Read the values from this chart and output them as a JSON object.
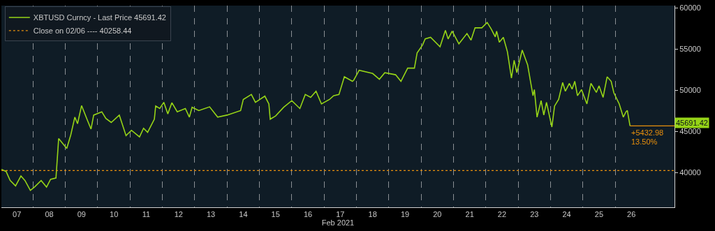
{
  "chart_data": {
    "type": "line",
    "xlabel": "Feb 2021",
    "x": [
      "2021-02-07T00:30",
      "2021-02-07T04:00",
      "2021-02-07T07:00",
      "2021-02-07T11:00",
      "2021-02-07T15:00",
      "2021-02-07T18:00",
      "2021-02-07T22:00",
      "2021-02-08T01:00",
      "2021-02-08T06:00",
      "2021-02-08T10:00",
      "2021-02-08T13:00",
      "2021-02-08T17:00",
      "2021-02-08T19:00",
      "2021-02-08T21:00",
      "2021-02-09T01:00",
      "2021-02-09T04:00",
      "2021-02-09T07:00",
      "2021-02-09T09:00",
      "2021-02-09T12:00",
      "2021-02-09T16:00",
      "2021-02-09T19:00",
      "2021-02-09T21:00",
      "2021-02-10T03:00",
      "2021-02-10T06:00",
      "2021-02-10T10:00",
      "2021-02-10T16:00",
      "2021-02-10T21:00",
      "2021-02-11T01:00",
      "2021-02-11T07:00",
      "2021-02-11T10:00",
      "2021-02-11T13:00",
      "2021-02-11T18:00",
      "2021-02-11T19:00",
      "2021-02-11T22:00",
      "2021-02-12T01:00",
      "2021-02-12T04:00",
      "2021-02-12T07:00",
      "2021-02-12T11:00",
      "2021-02-12T17:00",
      "2021-02-12T20:00",
      "2021-02-12T22:00",
      "2021-02-13T03:00",
      "2021-02-13T11:00",
      "2021-02-13T17:00",
      "2021-02-14T00:00",
      "2021-02-14T10:00",
      "2021-02-14T12:00",
      "2021-02-14T18:00",
      "2021-02-14T21:00",
      "2021-02-15T04:00",
      "2021-02-15T07:00",
      "2021-02-15T08:00",
      "2021-02-15T12:00",
      "2021-02-15T18:00",
      "2021-02-16T00:00",
      "2021-02-16T06:00",
      "2021-02-16T10:00",
      "2021-02-16T14:00",
      "2021-02-16T18:00",
      "2021-02-16T22:00",
      "2021-02-17T04:00",
      "2021-02-17T07:00",
      "2021-02-17T11:00",
      "2021-02-17T15:00",
      "2021-02-17T21:00",
      "2021-02-17T22:00",
      "2021-02-18T02:00",
      "2021-02-18T12:00",
      "2021-02-18T17:00",
      "2021-02-18T21:00",
      "2021-02-19T05:00",
      "2021-02-19T09:00",
      "2021-02-19T14:00",
      "2021-02-19T19:00",
      "2021-02-19T21:00",
      "2021-02-20T01:00",
      "2021-02-20T03:00",
      "2021-02-20T07:00",
      "2021-02-20T14:00",
      "2021-02-20T18:00",
      "2021-02-20T20:00",
      "2021-02-20T23:00",
      "2021-02-21T04:00",
      "2021-02-21T10:00",
      "2021-02-21T13:00",
      "2021-02-21T16:00",
      "2021-02-21T21:00",
      "2021-02-22T01:00",
      "2021-02-22T04:00",
      "2021-02-22T07:00",
      "2021-02-22T08:00",
      "2021-02-22T10:00",
      "2021-02-22T13:00",
      "2021-02-22T16:00",
      "2021-02-22T19:00",
      "2021-02-22T21:00",
      "2021-02-22T23:00",
      "2021-02-23T03:00",
      "2021-02-23T07:00",
      "2021-02-23T11:00",
      "2021-02-23T12:00",
      "2021-02-23T14:00",
      "2021-02-23T17:00",
      "2021-02-23T19:00",
      "2021-02-23T21:00",
      "2021-02-24T01:00",
      "2021-02-24T03:00",
      "2021-02-24T06:00",
      "2021-02-24T09:00",
      "2021-02-24T11:00",
      "2021-02-24T14:00",
      "2021-02-24T16:00",
      "2021-02-24T18:00",
      "2021-02-24T20:00",
      "2021-02-24T23:00",
      "2021-02-25T03:00",
      "2021-02-25T06:00",
      "2021-02-25T10:00",
      "2021-02-25T12:00",
      "2021-02-25T15:00",
      "2021-02-25T18:00",
      "2021-02-25T21:00",
      "2021-02-25T23:00",
      "2021-02-26T03:00",
      "2021-02-26T06:00",
      "2021-02-26T08:00",
      "2021-02-26T09:00",
      "2021-02-26T11:00"
    ],
    "series": [
      {
        "name": "XBTUSD Curncy - Last Price 45691.42",
        "color": "#96d417",
        "values": [
          40400,
          40150,
          39050,
          38400,
          39600,
          39050,
          37850,
          38250,
          39050,
          38250,
          39200,
          39350,
          44150,
          43750,
          42950,
          44600,
          46750,
          45950,
          48150,
          46500,
          45300,
          47000,
          47400,
          46600,
          46100,
          47000,
          44500,
          45150,
          44350,
          45400,
          44900,
          46500,
          48100,
          47800,
          48550,
          47150,
          48500,
          47400,
          47800,
          46750,
          47950,
          47550,
          48000,
          46750,
          47000,
          47550,
          48900,
          49500,
          48550,
          49300,
          48350,
          46500,
          46900,
          47950,
          48750,
          47800,
          49500,
          49150,
          49900,
          48350,
          48900,
          49350,
          49500,
          51650,
          51100,
          51250,
          52450,
          52050,
          51350,
          52150,
          51900,
          51100,
          52700,
          52700,
          54550,
          55500,
          56250,
          56450,
          55300,
          57300,
          56250,
          57200,
          55650,
          56900,
          56100,
          57600,
          57600,
          58250,
          57450,
          56500,
          57200,
          55850,
          56450,
          54700,
          51500,
          53650,
          52150,
          54900,
          53100,
          49350,
          50100,
          46750,
          48750,
          47000,
          48550,
          45550,
          48100,
          48900,
          50950,
          49900,
          50850,
          50150,
          51100,
          49350,
          50100,
          48350,
          50850,
          49750,
          50550,
          49150,
          51650,
          51100,
          49700,
          48350,
          46750,
          47400,
          47550,
          45691.42
        ]
      }
    ],
    "ref_lines": [
      {
        "axis": "y",
        "value": 40258.44,
        "label": "Close on 02/06 ---- 40258.44",
        "color": "#e8900c",
        "line_style": "dotted"
      }
    ],
    "annotations": [
      {
        "text": "+5432.98",
        "x": "2021-02-26T11:00",
        "y": 45691.42
      },
      {
        "text": "13.50%",
        "x": "2021-02-26T11:00",
        "y": 45691.42
      },
      {
        "text": "45691.42",
        "x": "2021-02-26T11:00",
        "y": 45691.42
      }
    ],
    "xlim": [
      "2021-02-07T00:30",
      "2021-02-27T20:00"
    ],
    "xticks": [
      {
        "value": "2021-02-07T12:00",
        "label": "07"
      },
      {
        "value": "2021-02-08T12:00",
        "label": "08"
      },
      {
        "value": "2021-02-09T12:00",
        "label": "09"
      },
      {
        "value": "2021-02-10T12:00",
        "label": "10"
      },
      {
        "value": "2021-02-11T12:00",
        "label": "11"
      },
      {
        "value": "2021-02-12T12:00",
        "label": "12"
      },
      {
        "value": "2021-02-13T12:00",
        "label": "13"
      },
      {
        "value": "2021-02-14T12:00",
        "label": "14"
      },
      {
        "value": "2021-02-15T12:00",
        "label": "15"
      },
      {
        "value": "2021-02-16T12:00",
        "label": "16"
      },
      {
        "value": "2021-02-17T12:00",
        "label": "17"
      },
      {
        "value": "2021-02-18T12:00",
        "label": "18"
      },
      {
        "value": "2021-02-19T12:00",
        "label": "19"
      },
      {
        "value": "2021-02-20T12:00",
        "label": "20"
      },
      {
        "value": "2021-02-21T12:00",
        "label": "21"
      },
      {
        "value": "2021-02-22T12:00",
        "label": "22"
      },
      {
        "value": "2021-02-23T12:00",
        "label": "23"
      },
      {
        "value": "2021-02-24T12:00",
        "label": "24"
      },
      {
        "value": "2021-02-25T12:00",
        "label": "25"
      },
      {
        "value": "2021-02-26T12:00",
        "label": "26"
      },
      {
        "value": "2021-02-08",
        "label": null
      },
      {
        "value": "2021-02-09",
        "label": null
      },
      {
        "value": "2021-02-10",
        "label": null
      },
      {
        "value": "2021-02-11",
        "label": null
      },
      {
        "value": "2021-02-12",
        "label": null
      },
      {
        "value": "2021-02-13",
        "label": null
      },
      {
        "value": "2021-02-14",
        "label": null
      },
      {
        "value": "2021-02-15",
        "label": null
      },
      {
        "value": "2021-02-16",
        "label": null
      },
      {
        "value": "2021-02-17",
        "label": null
      },
      {
        "value": "2021-02-18",
        "label": null
      },
      {
        "value": "2021-02-19",
        "label": null
      },
      {
        "value": "2021-02-20",
        "label": null
      },
      {
        "value": "2021-02-21",
        "label": null
      },
      {
        "value": "2021-02-22",
        "label": null
      },
      {
        "value": "2021-02-23",
        "label": null
      },
      {
        "value": "2021-02-24",
        "label": null
      },
      {
        "value": "2021-02-25",
        "label": null
      },
      {
        "value": "2021-02-26",
        "label": null
      }
    ],
    "ylim": [
      35800,
      60300
    ],
    "yticks": [
      40000,
      45000,
      50000,
      55000,
      60000
    ],
    "grid": "x",
    "legend": "top left",
    "marker": "none",
    "line_style": "solid"
  }
}
